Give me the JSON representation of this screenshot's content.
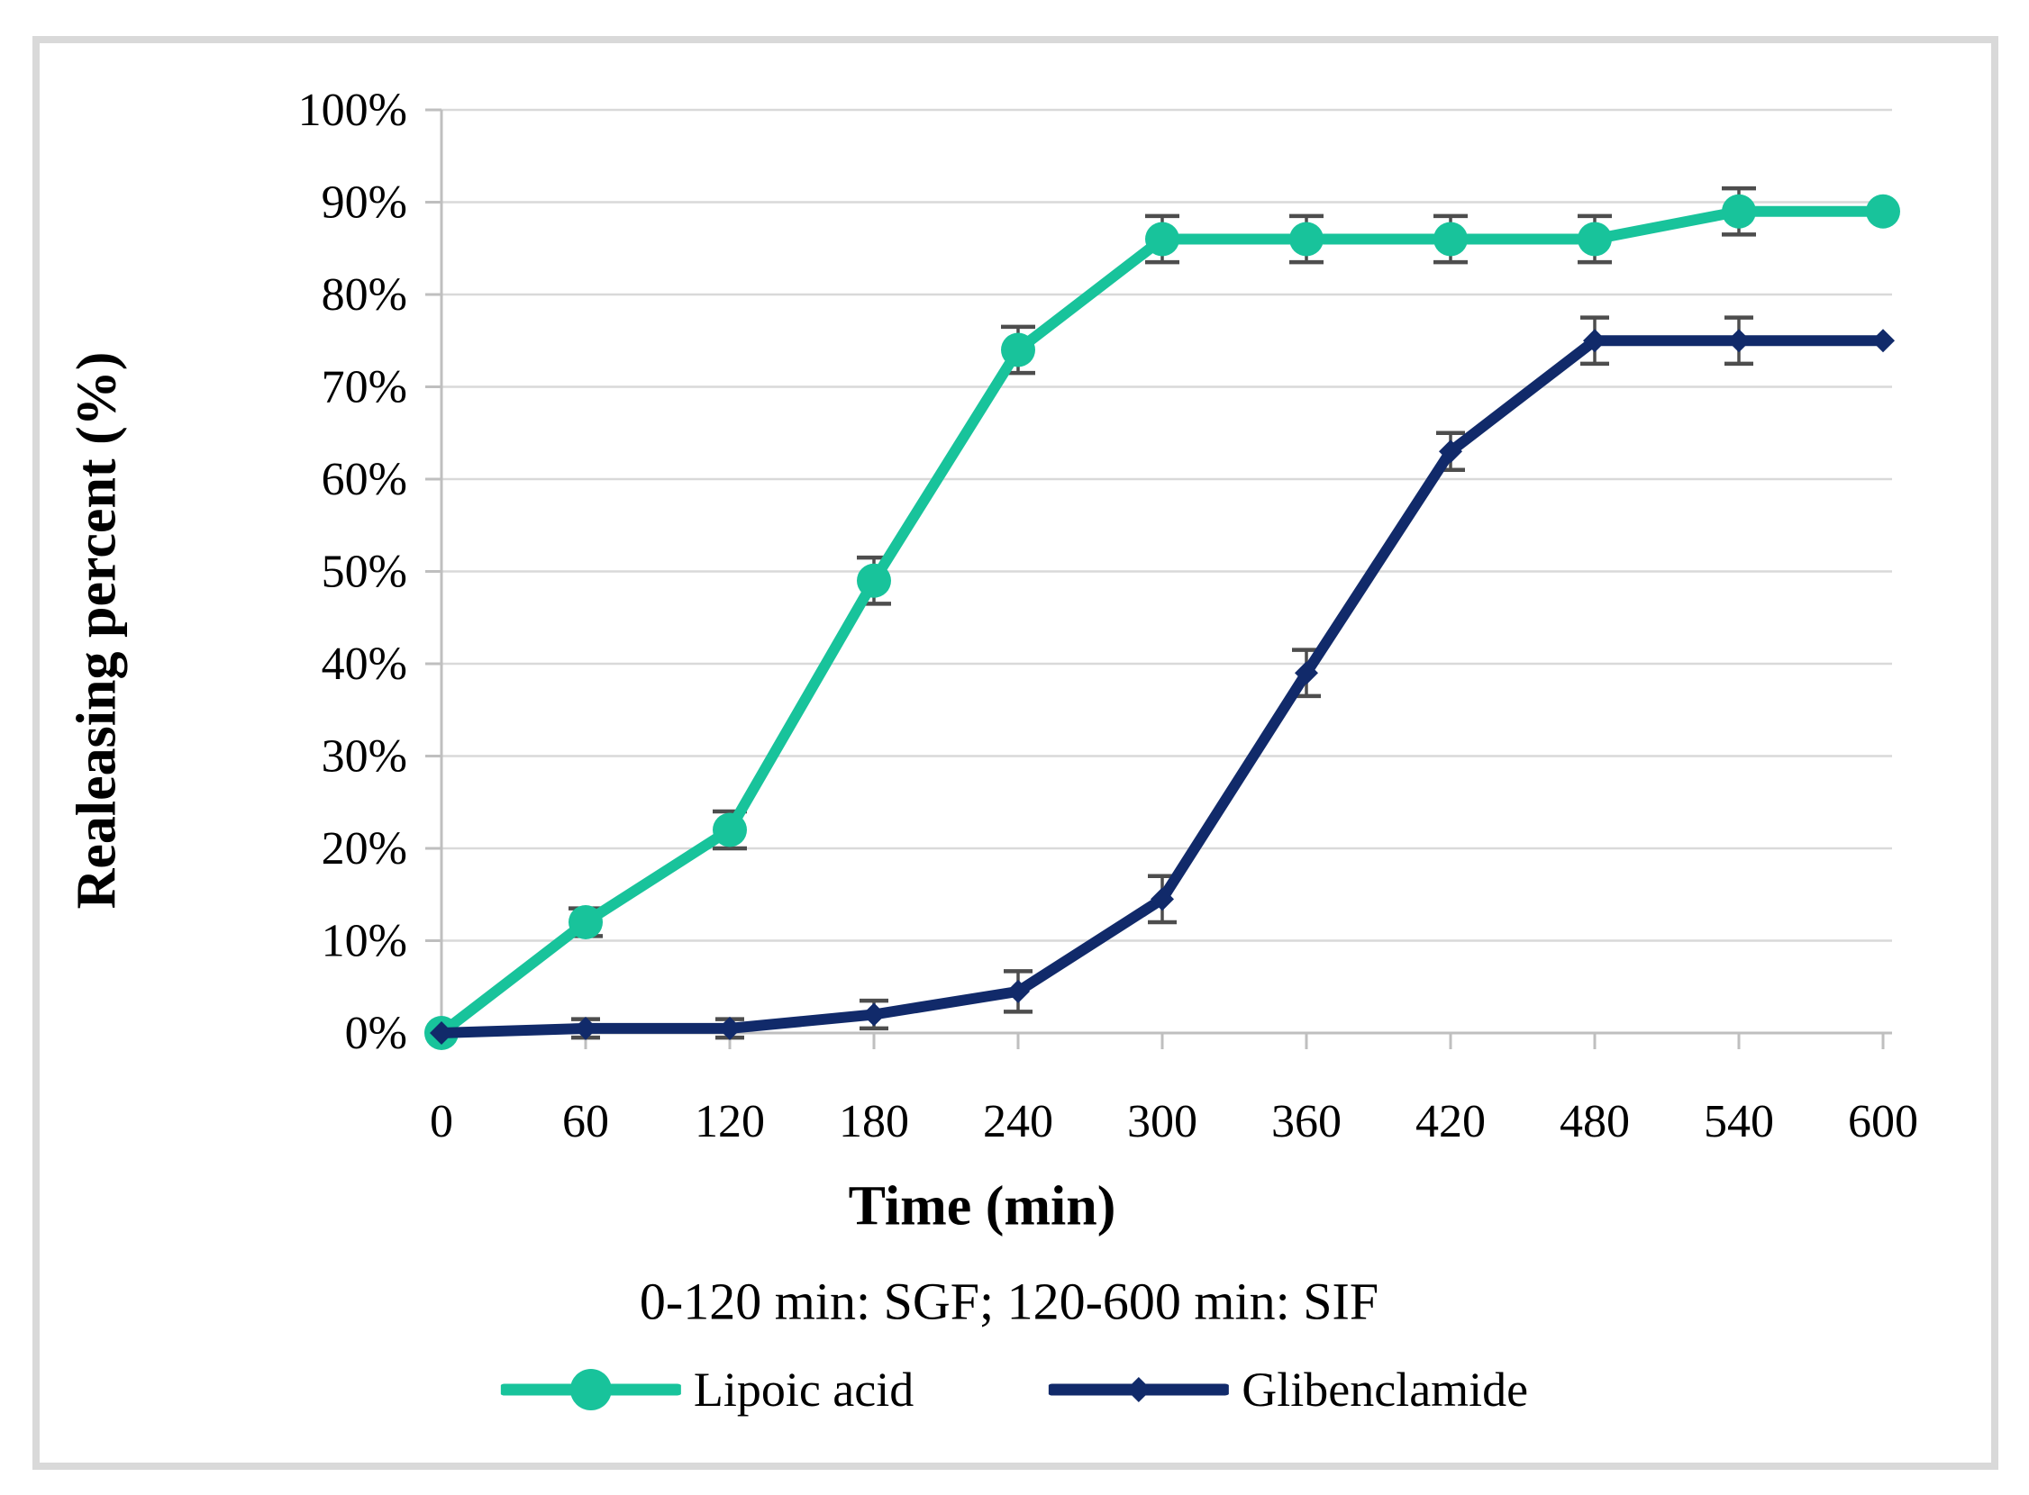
{
  "figure": {
    "y_axis_title": "Realeasing percent (%)",
    "x_axis_title": "Time (min)",
    "x_axis_note": "0-120 min: SGF; 120-600 min: SIF"
  },
  "chart_data": {
    "type": "line",
    "title": "",
    "xlabel": "Time (min)",
    "ylabel": "Realeasing percent (%)",
    "x": [
      0,
      60,
      120,
      180,
      240,
      300,
      360,
      420,
      480,
      540,
      600
    ],
    "x_tick_labels": [
      "0",
      "60",
      "120",
      "180",
      "240",
      "300",
      "360",
      "420",
      "480",
      "540",
      "600"
    ],
    "ylim": [
      0,
      100
    ],
    "y_tick_step": 10,
    "y_tick_labels": [
      "0%",
      "10%",
      "20%",
      "30%",
      "40%",
      "50%",
      "60%",
      "70%",
      "80%",
      "90%",
      "100%"
    ],
    "grid": "horizontal",
    "legend_position": "bottom",
    "series": [
      {
        "name": "Lipoic acid",
        "color": "#18C39B",
        "marker": "circle",
        "values": [
          0,
          12,
          22,
          49,
          74,
          86,
          86,
          86,
          86,
          89,
          89
        ],
        "errors": [
          0,
          1.5,
          2,
          2.5,
          2.5,
          2.5,
          2.5,
          2.5,
          2.5,
          2.5,
          0
        ]
      },
      {
        "name": "Glibenclamide",
        "color": "#112A6A",
        "marker": "diamond",
        "values": [
          0,
          0.5,
          0.5,
          2,
          4.5,
          14.5,
          39,
          63,
          75,
          75,
          75
        ],
        "errors": [
          0,
          1,
          1,
          1.5,
          2.2,
          2.5,
          2.5,
          2,
          2.5,
          2.5,
          0
        ]
      }
    ],
    "colors": {
      "gridline": "#D9D9D9",
      "axis": "#BFBFBF",
      "error_bar": "#4D4D4D",
      "text": "#000000"
    }
  }
}
